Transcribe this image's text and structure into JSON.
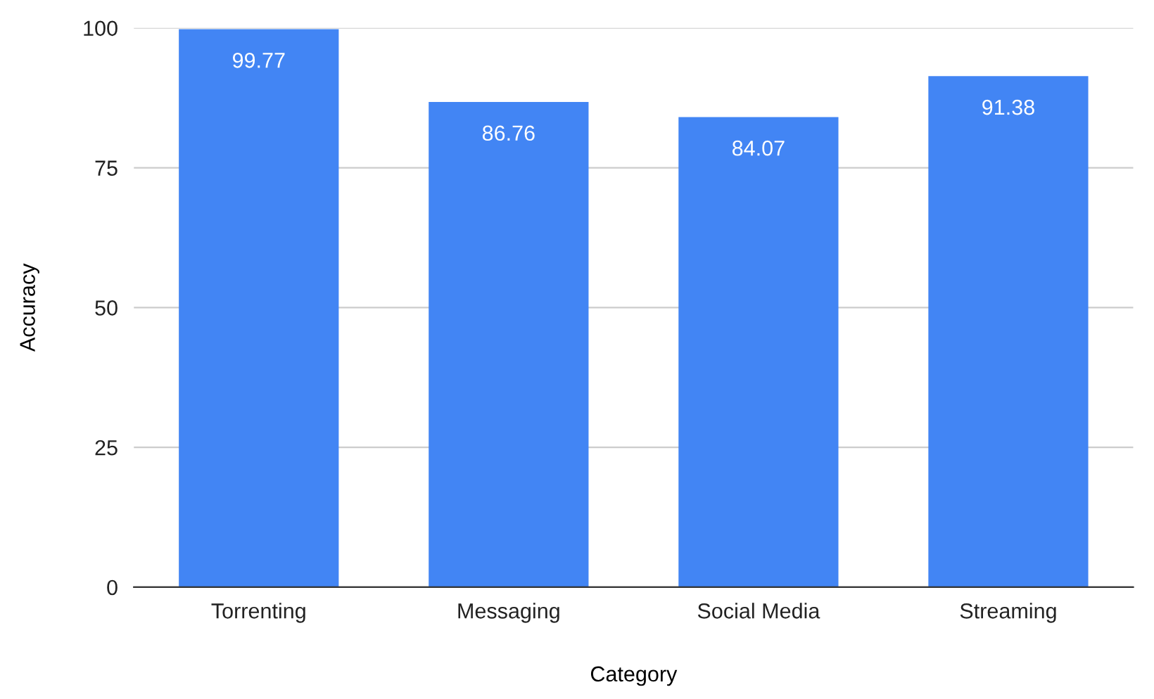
{
  "chart_data": {
    "type": "bar",
    "xlabel": "Category",
    "ylabel": "Accuracy",
    "categories": [
      "Torrenting",
      "Messaging",
      "Social Media",
      "Streaming"
    ],
    "values": [
      99.77,
      86.76,
      84.07,
      91.38
    ],
    "color": "#4285f4",
    "ylim": [
      0,
      100
    ],
    "yticks": [
      0,
      25,
      50,
      75,
      100
    ],
    "grid": "y",
    "data_labels": true
  }
}
